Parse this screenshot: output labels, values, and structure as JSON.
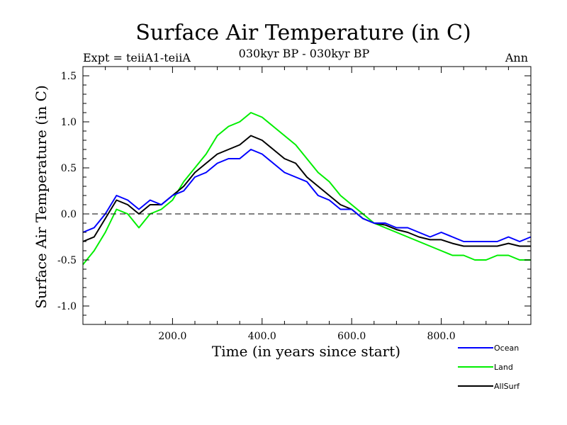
{
  "chart_data": {
    "type": "line",
    "title": "Surface Air Temperature (in C)",
    "subtitle_left": "Expt = teiiA1-teiiA",
    "subtitle_center": "030kyr BP - 030kyr BP",
    "subtitle_right": "Ann",
    "xlabel": "Time (in years since start)",
    "ylabel": "Surface Air Temperature (in C)",
    "xlim": [
      0,
      1000
    ],
    "ylim": [
      -1.2,
      1.6
    ],
    "xticks": [
      200,
      400,
      600,
      800
    ],
    "xtick_labels": [
      "200.0",
      "400.0",
      "600.0",
      "800.0"
    ],
    "yticks": [
      -1.0,
      -0.5,
      0.0,
      0.5,
      1.0,
      1.5
    ],
    "ytick_labels": [
      "-1.0",
      "-0.5",
      "0.0",
      "0.5",
      "1.0",
      "1.5"
    ],
    "zero_line": "dashed",
    "grid": false,
    "legend": "bottom-right",
    "series": [
      {
        "name": "Ocean",
        "color": "#0000ff",
        "x": [
          0,
          25,
          50,
          75,
          100,
          125,
          150,
          175,
          200,
          225,
          250,
          275,
          300,
          325,
          350,
          375,
          400,
          425,
          450,
          475,
          500,
          525,
          550,
          575,
          600,
          625,
          650,
          675,
          700,
          725,
          750,
          775,
          800,
          825,
          850,
          875,
          900,
          925,
          950,
          975,
          1000
        ],
        "values": [
          -0.2,
          -0.15,
          0.0,
          0.2,
          0.15,
          0.05,
          0.15,
          0.1,
          0.2,
          0.25,
          0.4,
          0.45,
          0.55,
          0.6,
          0.6,
          0.7,
          0.65,
          0.55,
          0.45,
          0.4,
          0.35,
          0.2,
          0.15,
          0.05,
          0.05,
          -0.05,
          -0.1,
          -0.1,
          -0.15,
          -0.15,
          -0.2,
          -0.25,
          -0.2,
          -0.25,
          -0.3,
          -0.3,
          -0.3,
          -0.3,
          -0.25,
          -0.3,
          -0.25
        ]
      },
      {
        "name": "Land",
        "color": "#00ee00",
        "x": [
          0,
          25,
          50,
          75,
          100,
          125,
          150,
          175,
          200,
          225,
          250,
          275,
          300,
          325,
          350,
          375,
          400,
          425,
          450,
          475,
          500,
          525,
          550,
          575,
          600,
          625,
          650,
          675,
          700,
          725,
          750,
          775,
          800,
          825,
          850,
          875,
          900,
          925,
          950,
          975,
          1000
        ],
        "values": [
          -0.55,
          -0.4,
          -0.2,
          0.05,
          0.0,
          -0.15,
          0.0,
          0.05,
          0.15,
          0.35,
          0.5,
          0.65,
          0.85,
          0.95,
          1.0,
          1.1,
          1.05,
          0.95,
          0.85,
          0.75,
          0.6,
          0.45,
          0.35,
          0.2,
          0.1,
          0.0,
          -0.1,
          -0.15,
          -0.2,
          -0.25,
          -0.3,
          -0.35,
          -0.4,
          -0.45,
          -0.45,
          -0.5,
          -0.5,
          -0.45,
          -0.45,
          -0.5,
          -0.5
        ]
      },
      {
        "name": "AllSurf",
        "color": "#000000",
        "x": [
          0,
          25,
          50,
          75,
          100,
          125,
          150,
          175,
          200,
          225,
          250,
          275,
          300,
          325,
          350,
          375,
          400,
          425,
          450,
          475,
          500,
          525,
          550,
          575,
          600,
          625,
          650,
          675,
          700,
          725,
          750,
          775,
          800,
          825,
          850,
          875,
          900,
          925,
          950,
          975,
          1000
        ],
        "values": [
          -0.3,
          -0.25,
          -0.05,
          0.15,
          0.1,
          0.0,
          0.1,
          0.1,
          0.2,
          0.3,
          0.45,
          0.55,
          0.65,
          0.7,
          0.75,
          0.85,
          0.8,
          0.7,
          0.6,
          0.55,
          0.4,
          0.3,
          0.2,
          0.1,
          0.05,
          -0.05,
          -0.1,
          -0.12,
          -0.17,
          -0.2,
          -0.25,
          -0.28,
          -0.28,
          -0.32,
          -0.35,
          -0.35,
          -0.35,
          -0.35,
          -0.32,
          -0.35,
          -0.35
        ]
      }
    ]
  }
}
